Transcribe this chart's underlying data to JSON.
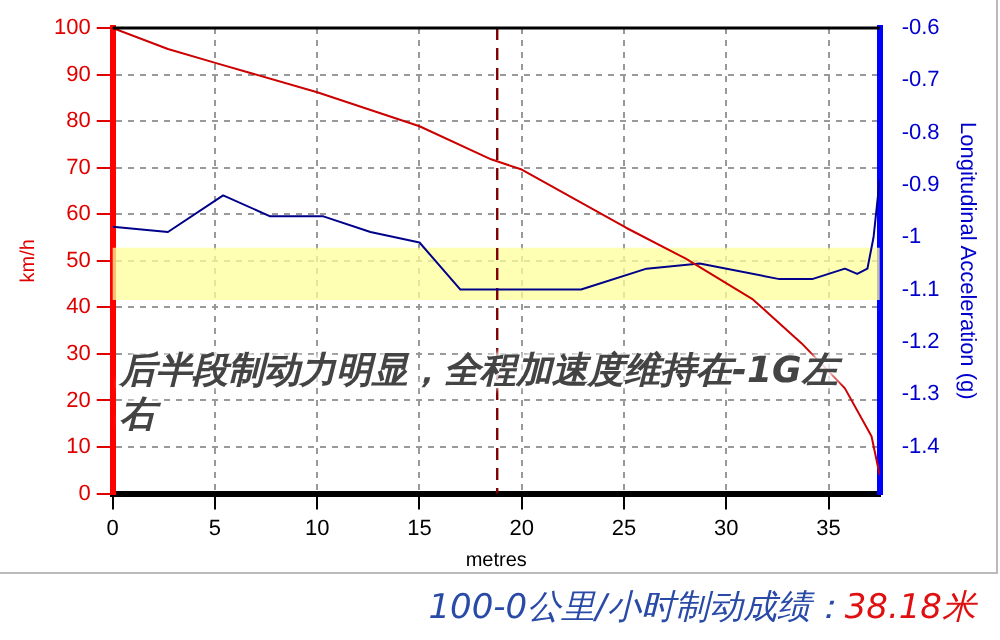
{
  "chart_data": {
    "type": "line",
    "xlabel": "metres",
    "ylabel": "km/h",
    "y2label": "Longitudinal Acceleration (g)",
    "xlim": [
      0,
      37.5
    ],
    "xticks": [
      0,
      5,
      10,
      15,
      20,
      25,
      30,
      35
    ],
    "ylim": [
      0,
      100
    ],
    "yticks": [
      0,
      10,
      20,
      30,
      40,
      50,
      60,
      70,
      80,
      90,
      100
    ],
    "y2lim": [
      -1.49,
      -0.6
    ],
    "y2ticks": [
      -1.4,
      -1.3,
      -1.2,
      -1.1,
      {
        "value": -1,
        "label": "-1"
      },
      -0.9,
      -0.8,
      -0.7,
      -0.6
    ],
    "grid": true,
    "legend": false,
    "marker": "none",
    "series": [
      {
        "color": "#cc0000",
        "x": [
          0,
          2.7,
          5.1,
          10,
          15,
          18.5,
          20,
          25.1,
          28,
          31.3,
          33.7,
          35.8,
          37.1,
          37.5
        ],
        "values": [
          100,
          95.5,
          92.4,
          86.2,
          78.9,
          71.8,
          69.6,
          57.1,
          50.5,
          41.7,
          32.2,
          22.6,
          12.3,
          4
        ]
      },
      {
        "color": "#00008b",
        "axis": "y2",
        "x": [
          0,
          2.7,
          5.4,
          7.7,
          10.3,
          12.6,
          15,
          17,
          19,
          22.9,
          26.1,
          28.7,
          32.6,
          34.2,
          35.8,
          36.4,
          36.9,
          37.2,
          37.5
        ],
        "values": [
          -0.98,
          -0.99,
          -0.92,
          -0.96,
          -0.96,
          -0.99,
          -1.01,
          -1.1,
          -1.1,
          -1.1,
          -1.06,
          -1.05,
          -1.08,
          -1.08,
          -1.06,
          -1.07,
          -1.06,
          -1.0,
          -0.89
        ]
      }
    ],
    "ref_lines": [
      {
        "axis": "x",
        "value": 18.8,
        "color": "#800000",
        "line_style": "dashed"
      }
    ],
    "bands": [
      {
        "axis": "y2",
        "from": -1.12,
        "to": -1.02,
        "color": "#ffff99"
      }
    ],
    "annotations": [
      "后半段制动力明显，全程加速度维持在-1G左右",
      "100-0公里/小时制动成绩：38.18米"
    ]
  }
}
